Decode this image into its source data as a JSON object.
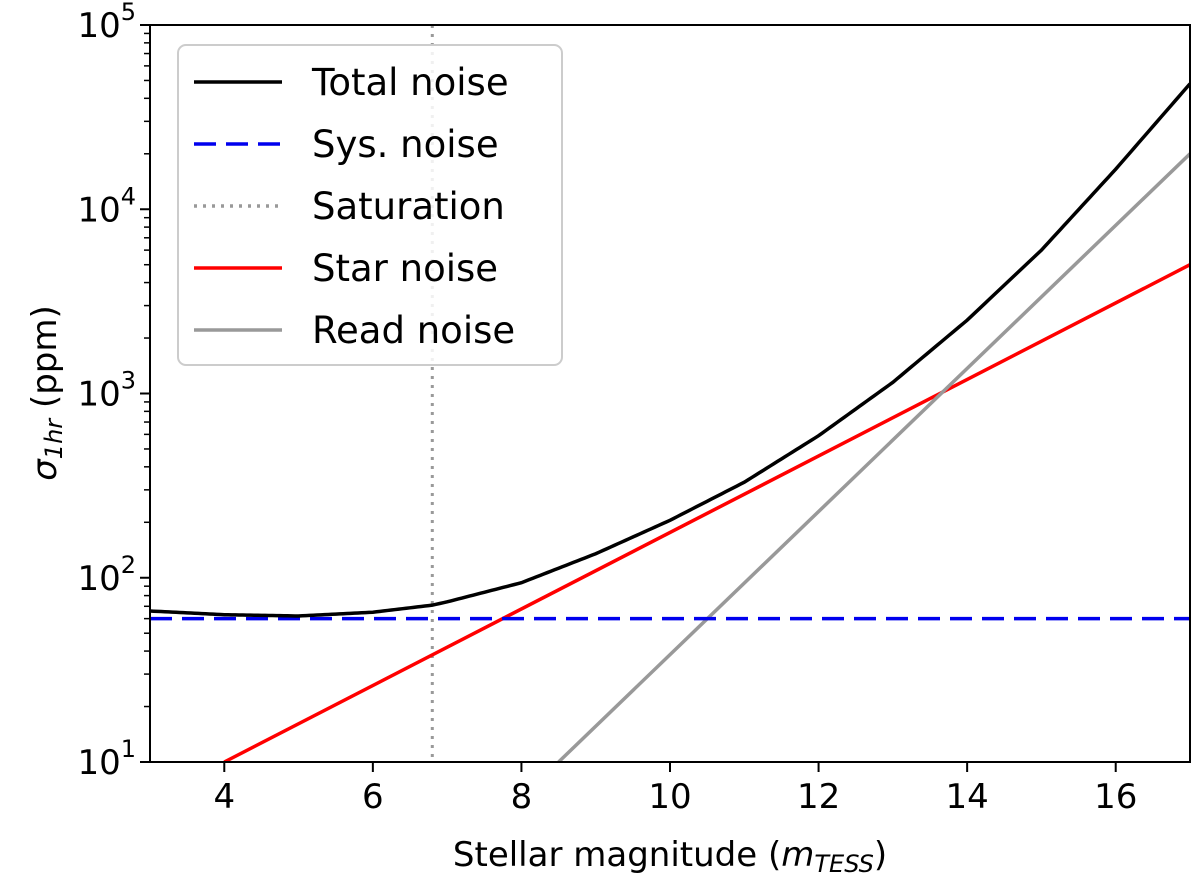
{
  "chart_data": {
    "type": "line",
    "title": "",
    "xlabel": {
      "main": "Stellar magnitude (",
      "italic": "m",
      "sub": "TESS",
      "close": ")"
    },
    "ylabel": {
      "symbol": "σ",
      "sub": "1hr",
      "rest": " (ppm)"
    },
    "x_range": [
      3,
      17
    ],
    "y_range": [
      10,
      100000
    ],
    "y_scale": "log",
    "grid": false,
    "legend_position": "top-left",
    "x_ticks": [
      4,
      6,
      8,
      10,
      12,
      14,
      16
    ],
    "x_tick_labels": [
      "4",
      "6",
      "8",
      "10",
      "12",
      "14",
      "16"
    ],
    "y_ticks": [
      {
        "value": 10,
        "base": "10",
        "exp": "1"
      },
      {
        "value": 100,
        "base": "10",
        "exp": "2"
      },
      {
        "value": 1000,
        "base": "10",
        "exp": "3"
      },
      {
        "value": 10000,
        "base": "10",
        "exp": "4"
      },
      {
        "value": 100000,
        "base": "10",
        "exp": "5"
      }
    ],
    "series": [
      {
        "name": "Total noise",
        "color": "#000000",
        "dash": "solid",
        "x": [
          3,
          4,
          5,
          6,
          6.8,
          7,
          8,
          9,
          10,
          11,
          12,
          13,
          14,
          15,
          16,
          17
        ],
        "y": [
          66,
          63,
          62,
          65,
          71,
          74,
          94,
          135,
          205,
          330,
          590,
          1150,
          2500,
          6000,
          16500,
          48000
        ]
      },
      {
        "name": "Sys. noise",
        "color": "#0000ee",
        "dash": "dashed",
        "x": [
          3,
          17
        ],
        "y": [
          60,
          60
        ]
      },
      {
        "name": "Saturation",
        "color": "#999999",
        "dash": "dotted",
        "vertical_x": 6.8
      },
      {
        "name": "Star noise",
        "color": "#ff0000",
        "dash": "solid",
        "x": [
          4,
          17
        ],
        "y": [
          10,
          5000
        ]
      },
      {
        "name": "Read noise",
        "color": "#999999",
        "dash": "solid",
        "x": [
          8.5,
          17
        ],
        "y": [
          10,
          20000
        ]
      }
    ]
  }
}
